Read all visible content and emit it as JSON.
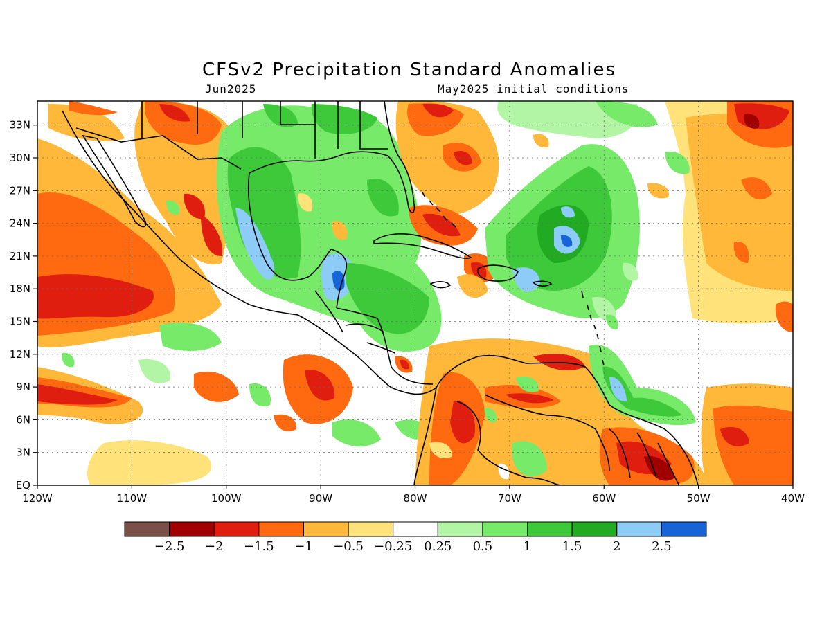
{
  "title": "CFSv2 Precipitation Standard Anomalies",
  "subtitle_left": "Jun2025",
  "subtitle_right": "May2025 initial conditions",
  "x_ticks": [
    "120W",
    "110W",
    "100W",
    "90W",
    "80W",
    "70W",
    "60W",
    "50W",
    "40W"
  ],
  "y_ticks": [
    "EQ",
    "3N",
    "6N",
    "9N",
    "12N",
    "15N",
    "18N",
    "21N",
    "24N",
    "27N",
    "30N",
    "33N"
  ],
  "colorbar": {
    "colors": [
      "#7a5048",
      "#a00000",
      "#e01e10",
      "#ff6a10",
      "#ffb83a",
      "#ffe27a",
      "#ffffff",
      "#b2f5a5",
      "#78ea6a",
      "#3ec93a",
      "#22aa22",
      "#8cccf7",
      "#1664d6"
    ],
    "labels": [
      "−2.5",
      "−2",
      "−1.5",
      "−1",
      "−0.5",
      "−0.25",
      "0.25",
      "0.5",
      "1",
      "1.5",
      "2",
      "2.5"
    ]
  },
  "palette": {
    "wet_strong": "#1664d6",
    "wet_2": "#8cccf7",
    "wet_15": "#22aa22",
    "wet_1": "#3ec93a",
    "wet_05": "#78ea6a",
    "wet_025": "#b2f5a5",
    "neutral": "#ffffff",
    "dry_025": "#ffe27a",
    "dry_05": "#ffb83a",
    "dry_1": "#ff6a10",
    "dry_15": "#e01e10",
    "dry_2": "#a00000"
  }
}
